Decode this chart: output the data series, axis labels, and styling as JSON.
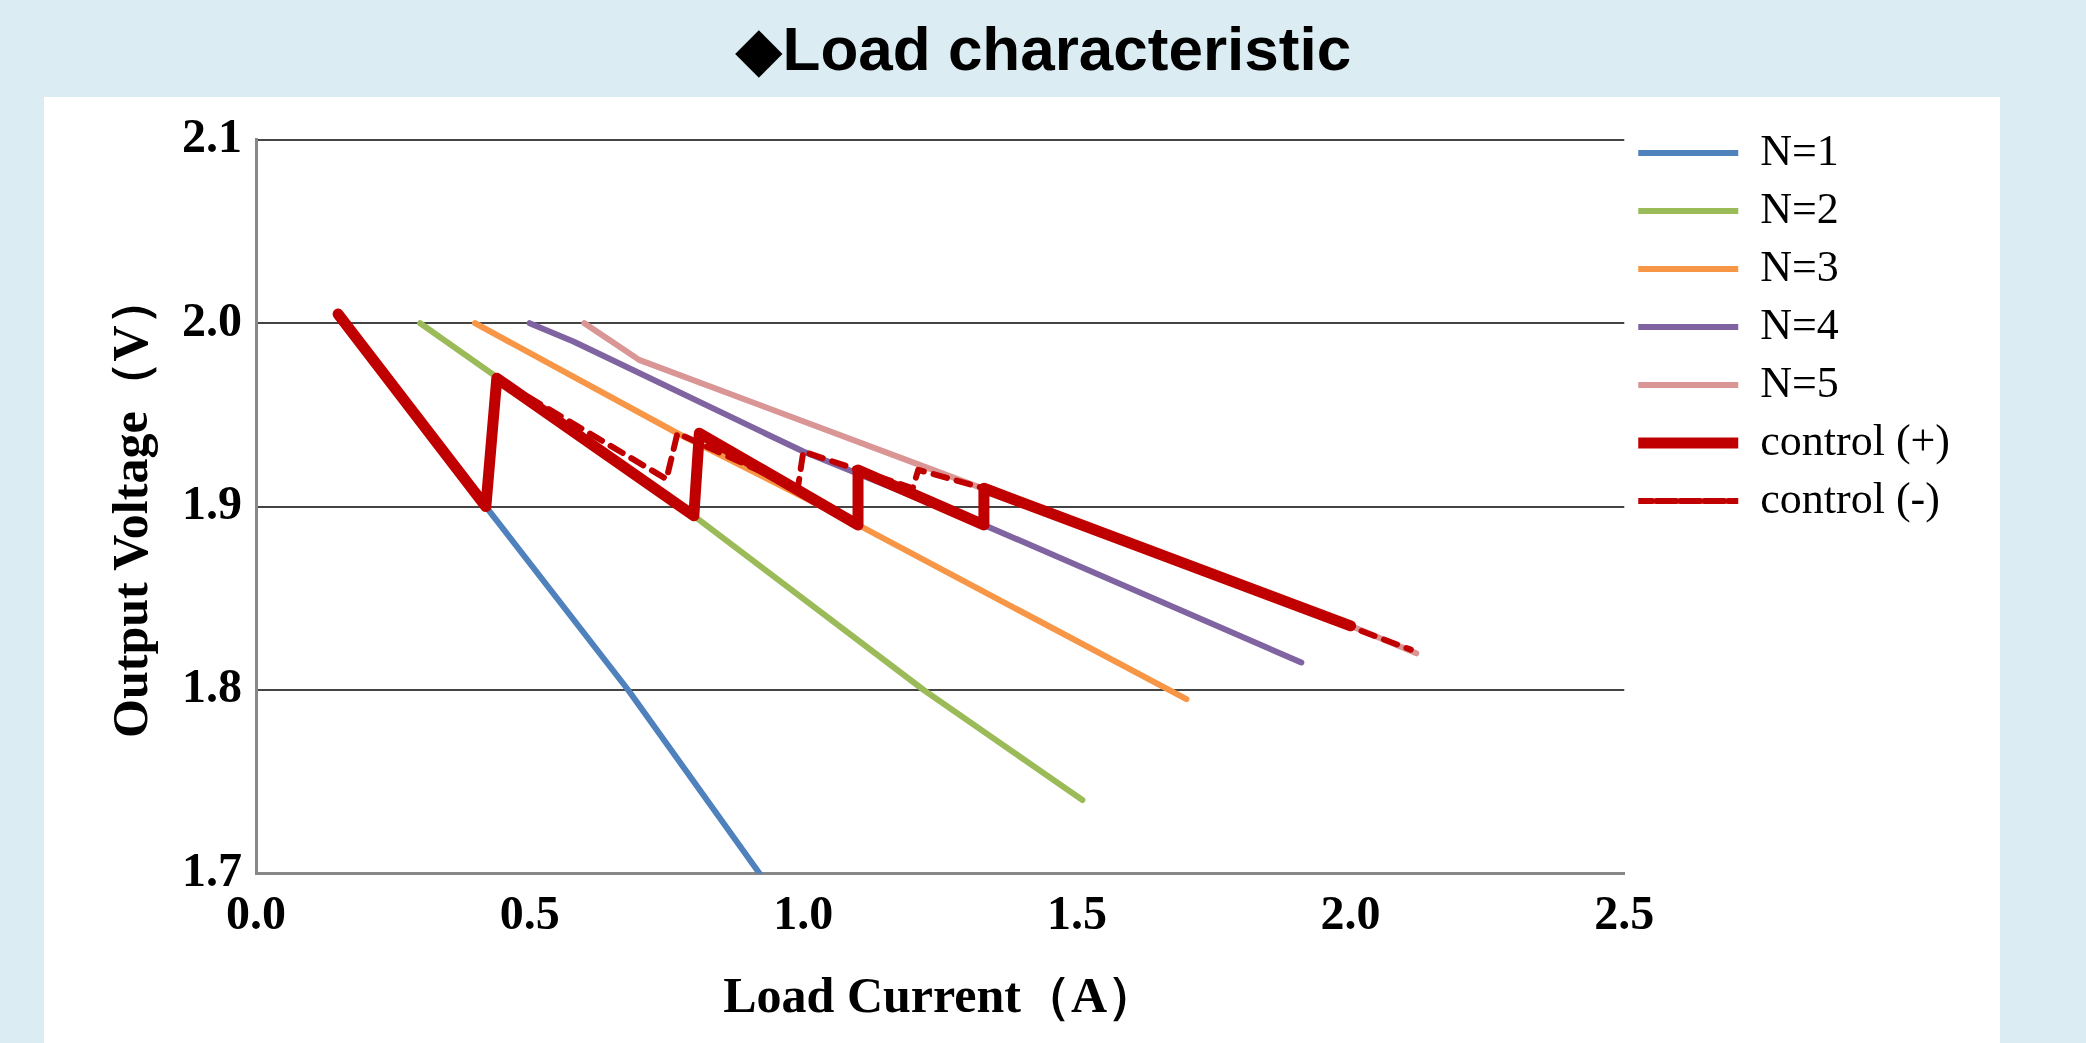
{
  "chart_data": {
    "type": "line",
    "title": "◆Load characteristic",
    "xlabel": "Load Current（A）",
    "ylabel": "Output Voltage（V）",
    "xlim": [
      0,
      2.5
    ],
    "xticks": [
      {
        "value": 0,
        "label": "0.0"
      },
      {
        "value": 0.5,
        "label": "0.5"
      },
      {
        "value": 1,
        "label": "1.0"
      },
      {
        "value": 1.5,
        "label": "1.5"
      },
      {
        "value": 2,
        "label": "2.0"
      },
      {
        "value": 2.5,
        "label": "2.5"
      }
    ],
    "ylim": [
      1.7,
      2.1
    ],
    "yticks": [
      {
        "value": 1.7,
        "label": "1.7"
      },
      {
        "value": 1.8,
        "label": "1.8"
      },
      {
        "value": 1.9,
        "label": "1.9"
      },
      {
        "value": 2,
        "label": "2.0"
      },
      {
        "value": 2.1,
        "label": "2.1"
      }
    ],
    "grid": "y",
    "legend": "top right",
    "marker": "none",
    "series": [
      {
        "name": "N=1",
        "color": "#4f81bd",
        "x": [
          0.42,
          0.68,
          0.92
        ],
        "values": [
          1.9,
          1.8,
          1.7
        ]
      },
      {
        "name": "N=2",
        "color": "#9bbb59",
        "x": [
          0.3,
          0.8,
          1.22,
          1.51
        ],
        "values": [
          2.0,
          1.895,
          1.8,
          1.74
        ]
      },
      {
        "name": "N=3",
        "color": "#f79646",
        "x": [
          0.4,
          0.77,
          1.1,
          1.7
        ],
        "values": [
          2.0,
          1.94,
          1.89,
          1.795
        ]
      },
      {
        "name": "N=4",
        "color": "#8064a2",
        "x": [
          0.5,
          0.58,
          1.0,
          1.33,
          1.91
        ],
        "values": [
          2.0,
          1.99,
          1.93,
          1.89,
          1.815
        ]
      },
      {
        "name": "N=5",
        "color": "#d99694",
        "x": [
          0.6,
          0.65,
          0.7,
          1.21,
          2.0,
          2.12
        ],
        "values": [
          2.0,
          1.99,
          1.98,
          1.923,
          1.835,
          1.82
        ]
      },
      {
        "name": "control (+)",
        "color": "#c00000",
        "x": [
          0.15,
          0.42,
          0.44,
          0.8,
          0.81,
          1.1,
          1.1,
          1.33,
          1.33,
          2.0
        ],
        "values": [
          2.005,
          1.9,
          1.97,
          1.895,
          1.94,
          1.89,
          1.92,
          1.89,
          1.91,
          1.835
        ]
      },
      {
        "name": "control (-)",
        "color": "#c00000",
        "line_style": "dashed",
        "x": [
          0.15,
          0.42,
          0.44,
          0.75,
          0.77,
          0.99,
          1.0,
          1.2,
          1.21,
          1.33,
          2.11
        ],
        "values": [
          2.005,
          1.9,
          1.97,
          1.915,
          1.94,
          1.91,
          1.93,
          1.91,
          1.92,
          1.91,
          1.822
        ]
      }
    ]
  }
}
